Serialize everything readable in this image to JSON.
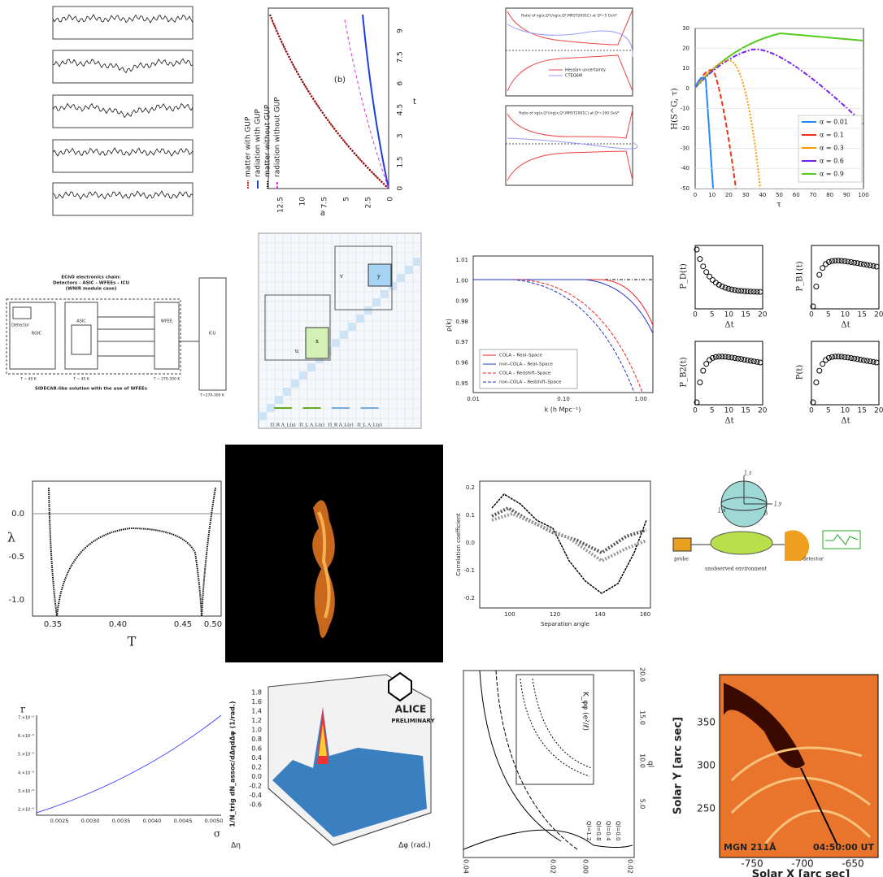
{
  "gup": {
    "marker": "(b)",
    "xlabel": "a",
    "ylabel": "t",
    "xticks": [
      12.5,
      10,
      7.5,
      5,
      2.5,
      0
    ],
    "yticks": [
      9,
      7.5,
      6,
      4.5,
      3,
      1.5,
      0
    ],
    "legend": [
      "matter with GUP",
      "radiation with GUP",
      "matter without GUP",
      "radiation without GUP"
    ]
  },
  "ratio": {
    "titles": [
      "Ratio of xg(x,Q²)/xg(x,Q²,MRST2001C) at Q²=5 GeV²",
      "Ratio of xg(x,Q²)/xg(x,Q²,MRST2001C) at Q²=100 GeV²"
    ],
    "legend": [
      "Hessian uncertainty",
      "CTEQ6M"
    ]
  },
  "entropy": {
    "ylabel": "H(S^G, τ)",
    "xlabel": "τ",
    "yticks": [
      30,
      20,
      10,
      0,
      -10,
      -20,
      -30,
      -40,
      -50
    ],
    "xticks": [
      0,
      10,
      20,
      30,
      40,
      50,
      60,
      70,
      80,
      90,
      100
    ],
    "legend": [
      "α = 0.01",
      "α = 0.1",
      "α = 0.3",
      "α = 0.6",
      "α = 0.9"
    ]
  },
  "echo": {
    "title": [
      "EChO electronics chain:",
      "Detectors - ASIC - WFEEs - ICU",
      "(WNIR module case)"
    ],
    "caption": "SIDECAR-like solution with the use of WFEEs",
    "blocks": [
      "Detector",
      "ROIC",
      "ASIC",
      "WFEE",
      "ICU"
    ],
    "temps": [
      "T ~ 40 K",
      "T ~ 40 K",
      "T ~ 270-300 K",
      "T=270-300 K"
    ]
  },
  "matrix": {
    "labels": [
      "u",
      "v",
      "x",
      "y"
    ],
    "footers": [
      "Π_R Λ_L(x)",
      "Π_L Λ_L(x)",
      "Π_R Λ_L(y)",
      "Π_L Λ_L(y)"
    ]
  },
  "rho": {
    "ylabel": "ρ(k)",
    "xlabel": "k (h Mpc⁻¹)",
    "yticks": [
      "1.01",
      "1.00",
      "0.99",
      "0.98",
      "0.97",
      "0.96",
      "0.95"
    ],
    "xticks": [
      "0.01",
      "0.10",
      "1.00"
    ],
    "legend": [
      "COLA – Real–Space",
      "non–COLA – Real–Space",
      "COLA – Redshift–Space",
      "non–COLA – Redshift–Space"
    ]
  },
  "prob": {
    "ylabels": [
      "P_D(t)",
      "P_B1(t)",
      "P_B2(t)",
      "P(t)"
    ],
    "xlabel": "Δt",
    "xticks": [
      0,
      5,
      10,
      15,
      20
    ]
  },
  "lambda": {
    "ylabel": "λ",
    "xlabel": "T",
    "yticks": [
      "0.0",
      "-0.5",
      "-1.0"
    ],
    "xticks": [
      "0.35",
      "0.40",
      "0.45",
      "0.50"
    ]
  },
  "corr": {
    "ylabel": "Correlation coefficient",
    "xlabel": "Separation angle",
    "yticks": [
      "0.2",
      "0.1",
      "0.0",
      "-0.1",
      "-0.2"
    ],
    "xticks": [
      100,
      120,
      140,
      160
    ]
  },
  "probe": {
    "labels": [
      "probe",
      "detector",
      "unobserved environment",
      "J_z",
      "J_y",
      "J_x",
      "B"
    ]
  },
  "rsigma": {
    "ylabel": "r",
    "xlabel": "σ",
    "yticks": [
      "7.×10⁻⁶",
      "6.×10⁻⁶",
      "5.×10⁻⁶",
      "4.×10⁻⁶",
      "3.×10⁻⁶",
      "2.×10⁻⁶"
    ],
    "xticks": [
      "0.0025",
      "0.0030",
      "0.0035",
      "0.0040",
      "0.0045",
      "0.0050"
    ]
  },
  "alice": {
    "logo": "ALICE",
    "status": "PRELIMINARY",
    "ylabel": "1/N_trig dN_assoc/dΔηdΔφ (1/rad.)",
    "xlabel": "Δφ (rad.)",
    "zlabel": "Δη",
    "yticks": [
      "1.8",
      "1.6",
      "1.4",
      "1.2",
      "1.0",
      "0.8",
      "0.6",
      "0.4",
      "0.2",
      "0.0",
      "-0.2",
      "-0.4",
      "-0.6"
    ]
  },
  "kappa": {
    "legend": [
      "Ql=0.0",
      "Ql=0.4",
      "Ql=0.8",
      "Ql=1.2"
    ],
    "ylabel": "ql",
    "xlabel": "K_φφ (e²/ℓ)",
    "yticks": [
      "20.0",
      "15.0",
      "10.0",
      "5.0"
    ],
    "xticks": [
      "0.04",
      "0.02",
      "0.00",
      "0.02"
    ]
  },
  "solar": {
    "ylabel": "Solar Y [arc sec]",
    "xlabel": "Solar X [arc sec]",
    "channel": "MGN 211Å",
    "time": "04:50:00 UT",
    "yticks": [
      350,
      300,
      250
    ],
    "xticks": [
      -750,
      -700,
      -650
    ]
  }
}
